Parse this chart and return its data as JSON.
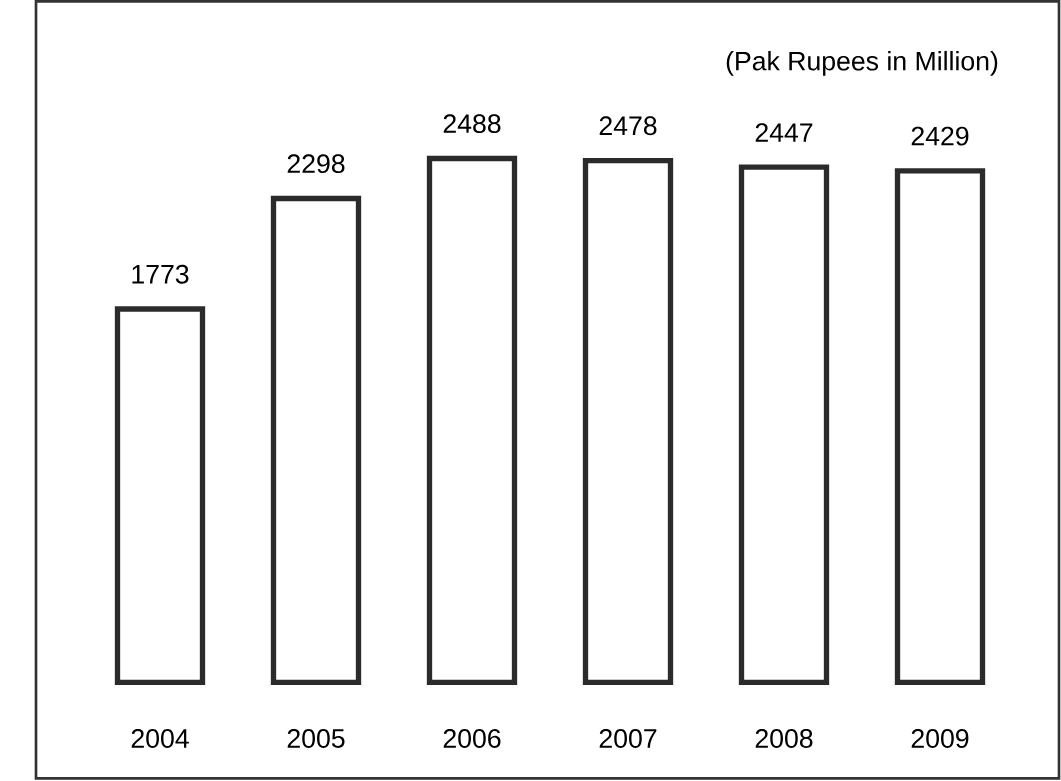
{
  "chart_data": {
    "type": "bar",
    "categories": [
      "2004",
      "2005",
      "2006",
      "2007",
      "2008",
      "2009"
    ],
    "values": [
      1773,
      2298,
      2488,
      2478,
      2447,
      2429
    ],
    "color": "#2b2b2b",
    "data_labels": true,
    "annotations": [
      "(Pak Rupees in Million)"
    ]
  }
}
